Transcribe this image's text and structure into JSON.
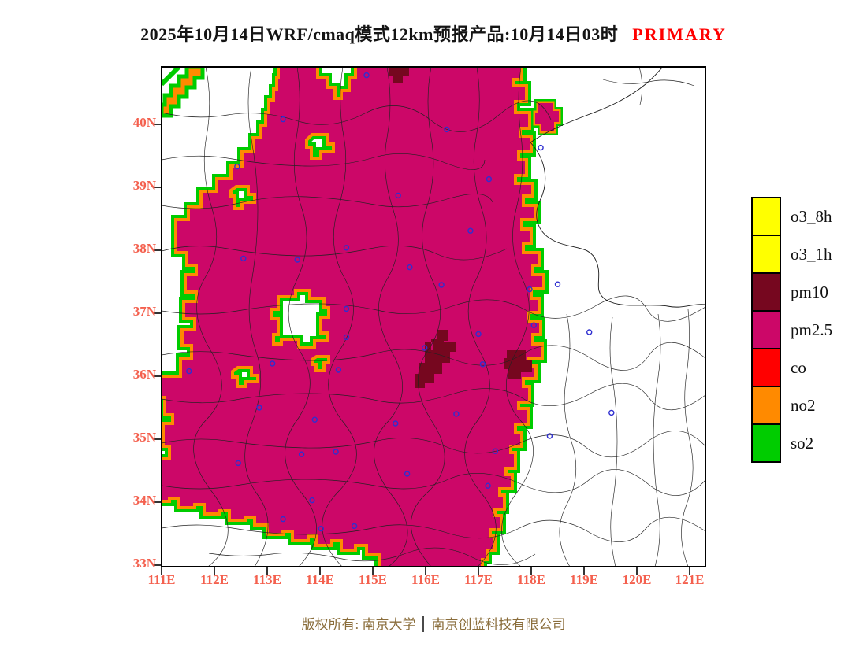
{
  "title": {
    "text": "2025年10月14日WRF/cmaq模式12km预报产品:10月14日03时",
    "highlight": "PRIMARY"
  },
  "legend": {
    "items": [
      {
        "label": "o3_8h",
        "color": "#FFFF00"
      },
      {
        "label": "o3_1h",
        "color": "#FFFF00"
      },
      {
        "label": "pm10",
        "color": "#76071F"
      },
      {
        "label": "pm2.5",
        "color": "#CC0768"
      },
      {
        "label": "co",
        "color": "#FF0000"
      },
      {
        "label": "no2",
        "color": "#FF8A00"
      },
      {
        "label": "so2",
        "color": "#00CC00"
      }
    ]
  },
  "axes": {
    "x_tick_labels": [
      "111E",
      "112E",
      "113E",
      "114E",
      "115E",
      "116E",
      "117E",
      "118E",
      "119E",
      "120E",
      "121E"
    ],
    "y_tick_labels": [
      "40N",
      "39N",
      "38N",
      "37N",
      "36N",
      "35N",
      "34N",
      "33N"
    ],
    "lon_min": 111,
    "lon_max": 121,
    "lat_min": 33,
    "lat_max": 40
  },
  "colors": {
    "pm25_field": "#CC0768",
    "pm10_patch": "#76071F",
    "no2_fringe": "#FF8A00",
    "so2_fringe": "#00CC00",
    "co_red": "#FF0000",
    "o3_yellow": "#FFFF00",
    "axis_label": "#F4604E",
    "title_highlight": "#FF0000",
    "marker": "#2F2FD0",
    "boundary": "#222222",
    "copyright_text": "#8A6D3B"
  },
  "footer": {
    "owner": "版权所有: 南京大学",
    "company": "南京创蓝科技有限公司"
  },
  "map": {
    "city_markers": [
      [
        116.4,
        39.92
      ],
      [
        117.2,
        39.13
      ],
      [
        118.18,
        39.63
      ],
      [
        114.88,
        40.78
      ],
      [
        113.3,
        40.08
      ],
      [
        112.43,
        39.33
      ],
      [
        115.48,
        38.87
      ],
      [
        114.5,
        38.04
      ],
      [
        112.55,
        37.87
      ],
      [
        113.57,
        37.85
      ],
      [
        116.85,
        38.31
      ],
      [
        115.7,
        37.73
      ],
      [
        114.5,
        37.07
      ],
      [
        114.5,
        36.62
      ],
      [
        116.3,
        37.45
      ],
      [
        117.97,
        37.38
      ],
      [
        118.5,
        37.46
      ],
      [
        117.0,
        36.67
      ],
      [
        118.05,
        36.81
      ],
      [
        119.1,
        36.7
      ],
      [
        115.98,
        36.45
      ],
      [
        117.08,
        36.19
      ],
      [
        114.35,
        36.1
      ],
      [
        113.1,
        36.2
      ],
      [
        111.52,
        36.08
      ],
      [
        112.85,
        35.5
      ],
      [
        113.9,
        35.31
      ],
      [
        115.43,
        35.25
      ],
      [
        116.58,
        35.4
      ],
      [
        118.35,
        35.05
      ],
      [
        119.52,
        35.42
      ],
      [
        113.65,
        34.76
      ],
      [
        114.3,
        34.8
      ],
      [
        112.45,
        34.62
      ],
      [
        113.85,
        34.03
      ],
      [
        117.32,
        34.81
      ],
      [
        117.18,
        34.26
      ],
      [
        115.65,
        34.45
      ],
      [
        113.3,
        33.73
      ],
      [
        114.02,
        33.58
      ],
      [
        114.65,
        33.62
      ]
    ]
  }
}
